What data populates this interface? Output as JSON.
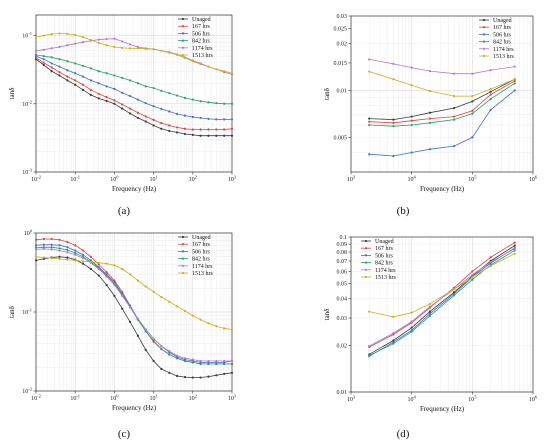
{
  "colors": {
    "Unaged": "#3a3a3a",
    "167 hrs": "#e0453c",
    "506 hrs": "#3f6fd8",
    "842 hrs": "#2aa06a",
    "1174 hrs": "#b07ad8",
    "1513 hrs": "#c8b418"
  },
  "chart_data": [
    {
      "id": "a",
      "caption": "(a)",
      "type": "line",
      "xscale": "log",
      "yscale": "log",
      "xlim": [
        0.01,
        1000
      ],
      "ylim": [
        0.001,
        0.2
      ],
      "xlabel": "Frequency (Hz)",
      "ylabel": "tanδ",
      "xticks": [
        {
          "v": 0.01,
          "b": "10",
          "e": "-2"
        },
        {
          "v": 0.1,
          "b": "10",
          "e": "-1"
        },
        {
          "v": 1,
          "b": "10",
          "e": "0"
        },
        {
          "v": 10,
          "b": "10",
          "e": "1"
        },
        {
          "v": 100,
          "b": "10",
          "e": "2"
        },
        {
          "v": 1000,
          "b": "10",
          "e": "3"
        }
      ],
      "yticks": [
        {
          "v": 0.001,
          "b": "10",
          "e": "-3"
        },
        {
          "v": 0.01,
          "b": "10",
          "e": "-2"
        },
        {
          "v": 0.1,
          "b": "10",
          "e": "-1"
        }
      ],
      "legend": "top-right",
      "grid": true,
      "x": [
        0.01,
        0.0158,
        0.0251,
        0.0398,
        0.0631,
        0.1,
        0.158,
        0.251,
        0.398,
        0.631,
        1,
        1.58,
        2.51,
        3.98,
        6.31,
        10,
        15.8,
        25.1,
        39.8,
        63.1,
        100,
        158,
        251,
        398,
        631,
        1000
      ],
      "series": [
        {
          "name": "Unaged",
          "values": [
            0.045,
            0.037,
            0.03,
            0.026,
            0.022,
            0.019,
            0.016,
            0.0135,
            0.012,
            0.011,
            0.01,
            0.0085,
            0.0072,
            0.0062,
            0.0055,
            0.0048,
            0.0043,
            0.004,
            0.0038,
            0.0036,
            0.0035,
            0.0034,
            0.0034,
            0.0034,
            0.0034,
            0.0034
          ]
        },
        {
          "name": "167 hrs",
          "values": [
            0.047,
            0.04,
            0.034,
            0.029,
            0.025,
            0.022,
            0.019,
            0.016,
            0.014,
            0.0125,
            0.0112,
            0.0098,
            0.0085,
            0.0074,
            0.0065,
            0.0058,
            0.0052,
            0.0048,
            0.0045,
            0.0043,
            0.0042,
            0.0042,
            0.0042,
            0.0042,
            0.0042,
            0.0043
          ]
        },
        {
          "name": "506 hrs",
          "values": [
            0.05,
            0.045,
            0.039,
            0.035,
            0.031,
            0.028,
            0.025,
            0.022,
            0.02,
            0.018,
            0.0165,
            0.0145,
            0.013,
            0.0115,
            0.0102,
            0.0092,
            0.0084,
            0.0077,
            0.0071,
            0.0067,
            0.0064,
            0.0062,
            0.006,
            0.0059,
            0.0059,
            0.0059
          ]
        },
        {
          "name": "842 hrs",
          "values": [
            0.052,
            0.05,
            0.048,
            0.045,
            0.042,
            0.039,
            0.036,
            0.033,
            0.03,
            0.028,
            0.026,
            0.024,
            0.022,
            0.02,
            0.018,
            0.017,
            0.0155,
            0.0143,
            0.0132,
            0.0122,
            0.0115,
            0.0109,
            0.0105,
            0.0102,
            0.01,
            0.01
          ]
        },
        {
          "name": "1174 hrs",
          "values": [
            0.06,
            0.062,
            0.065,
            0.068,
            0.072,
            0.076,
            0.08,
            0.084,
            0.087,
            0.089,
            0.09,
            0.082,
            0.074,
            0.068,
            0.065,
            0.063,
            0.06,
            0.057,
            0.053,
            0.048,
            0.043,
            0.039,
            0.035,
            0.032,
            0.029,
            0.027
          ]
        },
        {
          "name": "1513 hrs",
          "values": [
            0.095,
            0.1,
            0.105,
            0.107,
            0.106,
            0.102,
            0.095,
            0.086,
            0.078,
            0.072,
            0.068,
            0.066,
            0.065,
            0.065,
            0.064,
            0.063,
            0.06,
            0.056,
            0.052,
            0.047,
            0.042,
            0.038,
            0.035,
            0.032,
            0.03,
            0.028
          ]
        }
      ]
    },
    {
      "id": "b",
      "caption": "(b)",
      "type": "line",
      "xscale": "log",
      "yscale": "log",
      "xlim": [
        1000,
        1000000
      ],
      "ylim": [
        0.003,
        0.03
      ],
      "xlabel": "Frequency (Hz)",
      "ylabel": "tanδ",
      "xticks": [
        {
          "v": 1000,
          "b": "10",
          "e": "3"
        },
        {
          "v": 10000,
          "b": "10",
          "e": "4"
        },
        {
          "v": 100000,
          "b": "10",
          "e": "5"
        },
        {
          "v": 1000000,
          "b": "10",
          "e": "6"
        }
      ],
      "yticks": [
        {
          "v": 0.005,
          "t": "0.005"
        },
        {
          "v": 0.01,
          "t": "0.01"
        },
        {
          "v": 0.015,
          "t": "0.015"
        },
        {
          "v": 0.02,
          "t": "0.02"
        },
        {
          "v": 0.025,
          "t": "0.025"
        },
        {
          "v": 0.03,
          "t": "0.03"
        }
      ],
      "legend": "top-right",
      "grid": true,
      "x": [
        2000,
        5000,
        10000,
        20000,
        50000,
        100000,
        200000,
        500000
      ],
      "series": [
        {
          "name": "Unaged",
          "values": [
            0.0066,
            0.0065,
            0.0068,
            0.0072,
            0.0077,
            0.0085,
            0.0098,
            0.0118
          ]
        },
        {
          "name": "167 hrs",
          "values": [
            0.0063,
            0.0062,
            0.0064,
            0.0066,
            0.0068,
            0.0074,
            0.0094,
            0.0115
          ]
        },
        {
          "name": "506 hrs",
          "values": [
            0.0039,
            0.0038,
            0.004,
            0.0042,
            0.0044,
            0.005,
            0.0075,
            0.01
          ]
        },
        {
          "name": "842 hrs",
          "values": [
            0.006,
            0.0059,
            0.006,
            0.0062,
            0.0065,
            0.0071,
            0.0088,
            0.0111
          ]
        },
        {
          "name": "1174 hrs",
          "values": [
            0.0158,
            0.0148,
            0.014,
            0.0133,
            0.0128,
            0.0128,
            0.0135,
            0.0142
          ]
        },
        {
          "name": "1513 hrs",
          "values": [
            0.0132,
            0.0118,
            0.0108,
            0.0099,
            0.0092,
            0.0092,
            0.0102,
            0.0118
          ]
        }
      ]
    },
    {
      "id": "c",
      "caption": "(c)",
      "type": "line",
      "xscale": "log",
      "yscale": "log",
      "xlim": [
        0.01,
        1000
      ],
      "ylim": [
        0.01,
        1
      ],
      "xlabel": "Frequency (Hz)",
      "ylabel": "tanδ",
      "xticks": [
        {
          "v": 0.01,
          "b": "10",
          "e": "-2"
        },
        {
          "v": 0.1,
          "b": "10",
          "e": "-1"
        },
        {
          "v": 1,
          "b": "10",
          "e": "0"
        },
        {
          "v": 10,
          "b": "10",
          "e": "1"
        },
        {
          "v": 100,
          "b": "10",
          "e": "2"
        },
        {
          "v": 1000,
          "b": "10",
          "e": "3"
        }
      ],
      "yticks": [
        {
          "v": 0.01,
          "b": "10",
          "e": "-2"
        },
        {
          "v": 0.1,
          "b": "10",
          "e": "-1"
        },
        {
          "v": 1,
          "b": "10",
          "e": "0"
        }
      ],
      "legend": "top-right",
      "grid": true,
      "x": [
        0.01,
        0.0158,
        0.0251,
        0.0398,
        0.0631,
        0.1,
        0.158,
        0.251,
        0.398,
        0.631,
        1,
        1.58,
        2.51,
        3.98,
        6.31,
        10,
        15.8,
        25.1,
        39.8,
        63.1,
        100,
        158,
        251,
        398,
        631,
        1000
      ],
      "series": [
        {
          "name": "Unaged",
          "values": [
            0.45,
            0.47,
            0.49,
            0.5,
            0.49,
            0.46,
            0.41,
            0.35,
            0.29,
            0.22,
            0.16,
            0.11,
            0.075,
            0.05,
            0.033,
            0.024,
            0.019,
            0.017,
            0.0155,
            0.015,
            0.0148,
            0.0148,
            0.0152,
            0.0158,
            0.0165,
            0.017
          ]
        },
        {
          "name": "167 hrs",
          "values": [
            0.82,
            0.84,
            0.84,
            0.82,
            0.77,
            0.7,
            0.6,
            0.5,
            0.4,
            0.32,
            0.25,
            0.18,
            0.12,
            0.08,
            0.057,
            0.042,
            0.034,
            0.029,
            0.026,
            0.024,
            0.023,
            0.022,
            0.022,
            0.022,
            0.022,
            0.022
          ]
        },
        {
          "name": "506 hrs",
          "values": [
            0.7,
            0.71,
            0.71,
            0.7,
            0.66,
            0.6,
            0.53,
            0.45,
            0.37,
            0.3,
            0.24,
            0.17,
            0.12,
            0.082,
            0.06,
            0.046,
            0.037,
            0.031,
            0.027,
            0.025,
            0.024,
            0.023,
            0.023,
            0.023,
            0.023,
            0.024
          ]
        },
        {
          "name": "842 hrs",
          "values": [
            0.65,
            0.66,
            0.66,
            0.64,
            0.61,
            0.56,
            0.5,
            0.43,
            0.36,
            0.29,
            0.23,
            0.165,
            0.115,
            0.08,
            0.057,
            0.043,
            0.034,
            0.029,
            0.026,
            0.024,
            0.023,
            0.022,
            0.022,
            0.022,
            0.022,
            0.022
          ]
        },
        {
          "name": "1174 hrs",
          "values": [
            0.62,
            0.63,
            0.62,
            0.6,
            0.57,
            0.53,
            0.48,
            0.42,
            0.35,
            0.28,
            0.22,
            0.16,
            0.115,
            0.082,
            0.06,
            0.046,
            0.037,
            0.032,
            0.028,
            0.026,
            0.025,
            0.024,
            0.024,
            0.024,
            0.024,
            0.024
          ]
        },
        {
          "name": "1513 hrs",
          "values": [
            0.5,
            0.49,
            0.48,
            0.47,
            0.46,
            0.45,
            0.44,
            0.43,
            0.42,
            0.41,
            0.39,
            0.35,
            0.3,
            0.25,
            0.21,
            0.18,
            0.155,
            0.135,
            0.118,
            0.103,
            0.09,
            0.08,
            0.072,
            0.066,
            0.062,
            0.06
          ]
        }
      ]
    },
    {
      "id": "d",
      "caption": "(d)",
      "type": "line",
      "xscale": "log",
      "yscale": "log",
      "xlim": [
        1000,
        1000000
      ],
      "ylim": [
        0.01,
        0.1
      ],
      "xlabel": "Frequency (Hz)",
      "ylabel": "tanδ",
      "xticks": [
        {
          "v": 1000,
          "b": "10",
          "e": "3"
        },
        {
          "v": 10000,
          "b": "10",
          "e": "4"
        },
        {
          "v": 100000,
          "b": "10",
          "e": "5"
        },
        {
          "v": 1000000,
          "b": "10",
          "e": "6"
        }
      ],
      "yticks": [
        {
          "v": 0.01,
          "t": "0.01"
        },
        {
          "v": 0.02,
          "t": "0.02"
        },
        {
          "v": 0.03,
          "t": "0.03"
        },
        {
          "v": 0.04,
          "t": "0.04"
        },
        {
          "v": 0.05,
          "t": "0.05"
        },
        {
          "v": 0.06,
          "t": "0.06"
        },
        {
          "v": 0.07,
          "t": "0.07"
        },
        {
          "v": 0.08,
          "t": "0.08"
        },
        {
          "v": 0.09,
          "t": "0.09"
        },
        {
          "v": 0.1,
          "t": "0.1"
        }
      ],
      "legend": "top-left",
      "grid": true,
      "x": [
        2000,
        5000,
        10000,
        20000,
        50000,
        100000,
        200000,
        500000
      ],
      "series": [
        {
          "name": "Unaged",
          "values": [
            0.0175,
            0.0215,
            0.026,
            0.033,
            0.044,
            0.056,
            0.07,
            0.088
          ]
        },
        {
          "name": "167 hrs",
          "values": [
            0.0195,
            0.0235,
            0.028,
            0.035,
            0.047,
            0.06,
            0.074,
            0.092
          ]
        },
        {
          "name": "506 hrs",
          "values": [
            0.017,
            0.021,
            0.025,
            0.032,
            0.043,
            0.055,
            0.068,
            0.085
          ]
        },
        {
          "name": "842 hrs",
          "values": [
            0.0172,
            0.0205,
            0.0245,
            0.031,
            0.042,
            0.053,
            0.066,
            0.082
          ]
        },
        {
          "name": "1174 hrs",
          "values": [
            0.0198,
            0.024,
            0.0285,
            0.0355,
            0.046,
            0.057,
            0.069,
            0.084
          ]
        },
        {
          "name": "1513 hrs",
          "values": [
            0.033,
            0.0305,
            0.0325,
            0.037,
            0.046,
            0.055,
            0.065,
            0.078
          ]
        }
      ]
    }
  ]
}
